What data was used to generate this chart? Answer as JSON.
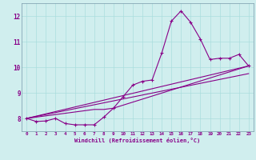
{
  "xlabel": "Windchill (Refroidissement éolien,°C)",
  "bg_color": "#d0eeee",
  "line_color": "#880088",
  "xlim": [
    -0.5,
    23.5
  ],
  "ylim": [
    7.5,
    12.5
  ],
  "yticks": [
    8,
    9,
    10,
    11,
    12
  ],
  "xticks": [
    0,
    1,
    2,
    3,
    4,
    5,
    6,
    7,
    8,
    9,
    10,
    11,
    12,
    13,
    14,
    15,
    16,
    17,
    18,
    19,
    20,
    21,
    22,
    23
  ],
  "series1_x": [
    0,
    1,
    2,
    3,
    4,
    5,
    6,
    7,
    8,
    9,
    10,
    11,
    12,
    13,
    14,
    15,
    16,
    17,
    18,
    19,
    20,
    21,
    22,
    23
  ],
  "series1_y": [
    8.0,
    7.88,
    7.9,
    8.0,
    7.8,
    7.75,
    7.75,
    7.75,
    8.05,
    8.4,
    8.85,
    9.3,
    9.45,
    9.5,
    10.55,
    11.8,
    12.2,
    11.75,
    11.1,
    10.3,
    10.35,
    10.35,
    10.5,
    10.05
  ],
  "series2_x": [
    0,
    7,
    8,
    9,
    23
  ],
  "series2_y": [
    8.0,
    8.35,
    8.35,
    8.4,
    10.05
  ],
  "series3_x": [
    0,
    23
  ],
  "series3_y": [
    8.0,
    10.05
  ],
  "series4_x": [
    0,
    23
  ],
  "series4_y": [
    8.0,
    9.75
  ],
  "grid_color": "#aadddd",
  "spine_color": "#7799aa"
}
